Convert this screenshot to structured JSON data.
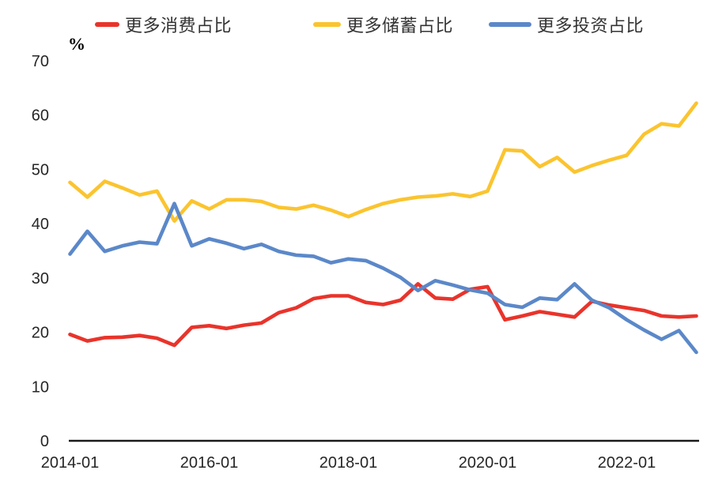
{
  "legend": {
    "items": [
      {
        "label": "更多消费占比",
        "color": "#E9342B"
      },
      {
        "label": "更多储蓄占比",
        "color": "#FBC42F"
      },
      {
        "label": "更多投资占比",
        "color": "#5B88C9"
      }
    ]
  },
  "chart_data": {
    "type": "line",
    "title": "",
    "y_unit": "%",
    "ylim": [
      0,
      70
    ],
    "grid": false,
    "legend_position": "top",
    "y_ticks": [
      0,
      10,
      20,
      30,
      40,
      50,
      60,
      70
    ],
    "x_tick_labels": [
      {
        "label": "2014-01",
        "index": 0
      },
      {
        "label": "2016-01",
        "index": 8
      },
      {
        "label": "2018-01",
        "index": 16
      },
      {
        "label": "2020-01",
        "index": 24
      },
      {
        "label": "2022-01",
        "index": 32
      }
    ],
    "x": [
      "2014-01",
      "2014-04",
      "2014-07",
      "2014-10",
      "2015-01",
      "2015-04",
      "2015-07",
      "2015-10",
      "2016-01",
      "2016-04",
      "2016-07",
      "2016-10",
      "2017-01",
      "2017-04",
      "2017-07",
      "2017-10",
      "2018-01",
      "2018-04",
      "2018-07",
      "2018-10",
      "2019-01",
      "2019-04",
      "2019-07",
      "2019-10",
      "2020-01",
      "2020-04",
      "2020-07",
      "2020-10",
      "2021-01",
      "2021-04",
      "2021-07",
      "2021-10",
      "2022-01",
      "2022-04",
      "2022-07",
      "2022-10",
      "2023-01"
    ],
    "series": [
      {
        "name": "更多消费占比",
        "key": "consumption",
        "color": "#E9342B",
        "values": [
          19.6,
          18.4,
          19.0,
          19.1,
          19.4,
          18.9,
          17.6,
          20.9,
          21.2,
          20.7,
          21.3,
          21.7,
          23.6,
          24.5,
          26.2,
          26.7,
          26.7,
          25.5,
          25.1,
          25.9,
          28.9,
          26.3,
          26.1,
          27.9,
          28.4,
          22.3,
          23.0,
          23.8,
          23.3,
          22.8,
          25.7,
          25.0,
          24.5,
          24.0,
          23.0,
          22.8,
          23.0
        ]
      },
      {
        "name": "更多储蓄占比",
        "key": "savings",
        "color": "#FBC42F",
        "values": [
          47.6,
          44.9,
          47.8,
          46.6,
          45.3,
          46.0,
          40.5,
          44.2,
          42.7,
          44.4,
          44.4,
          44.1,
          43.0,
          42.7,
          43.4,
          42.5,
          41.3,
          42.6,
          43.7,
          44.4,
          44.9,
          45.1,
          45.5,
          45.0,
          46.0,
          53.6,
          53.4,
          50.5,
          52.2,
          49.5,
          50.7,
          51.7,
          52.6,
          56.5,
          58.4,
          58.0,
          62.2
        ]
      },
      {
        "name": "更多投资占比",
        "key": "investment",
        "color": "#5B88C9",
        "values": [
          34.4,
          38.6,
          34.9,
          35.9,
          36.6,
          36.3,
          43.7,
          35.9,
          37.2,
          36.4,
          35.4,
          36.2,
          34.9,
          34.2,
          34.0,
          32.8,
          33.5,
          33.2,
          31.8,
          30.1,
          27.7,
          29.5,
          28.7,
          27.8,
          27.2,
          25.1,
          24.6,
          26.3,
          26.0,
          28.9,
          25.9,
          24.5,
          22.3,
          20.4,
          18.7,
          20.3,
          16.3
        ]
      }
    ]
  }
}
